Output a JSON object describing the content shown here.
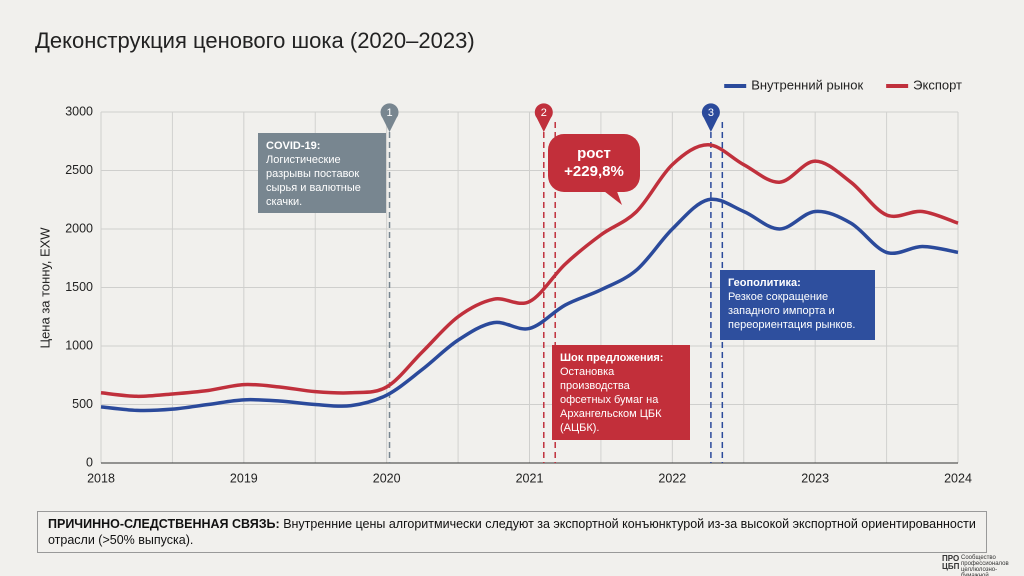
{
  "chart_data": {
    "type": "line",
    "title": "Деконструкция ценового шока (2020–2023)",
    "y_label": "Цена за тонну, EXW",
    "x": [
      2018,
      2018.25,
      2018.5,
      2018.75,
      2019,
      2019.25,
      2019.5,
      2019.75,
      2020,
      2020.25,
      2020.5,
      2020.75,
      2021,
      2021.25,
      2021.5,
      2021.75,
      2022,
      2022.25,
      2022.5,
      2022.75,
      2023,
      2023.25,
      2023.5,
      2023.75,
      2024
    ],
    "series": [
      {
        "name": "Внутренний рынок",
        "color": "#2b4a9b",
        "values": [
          480,
          450,
          460,
          500,
          540,
          530,
          500,
          490,
          580,
          800,
          1050,
          1200,
          1150,
          1350,
          1480,
          1650,
          2000,
          2250,
          2150,
          2000,
          2150,
          2050,
          1800,
          1850,
          1800
        ]
      },
      {
        "name": "Экспорт",
        "color": "#c0303c",
        "values": [
          600,
          570,
          590,
          620,
          670,
          650,
          610,
          600,
          650,
          950,
          1250,
          1400,
          1380,
          1700,
          1950,
          2150,
          2550,
          2720,
          2550,
          2400,
          2580,
          2400,
          2120,
          2150,
          2050
        ]
      }
    ],
    "xlim": [
      2018,
      2024
    ],
    "xticks": [
      2018,
      2019,
      2020,
      2021,
      2022,
      2023,
      2024
    ],
    "ylim": [
      0,
      3000
    ],
    "yticks": [
      0,
      500,
      1000,
      1500,
      2000,
      2500,
      3000
    ],
    "grid": true,
    "legend": "top-right",
    "events": [
      {
        "label": "1",
        "x": [
          2020.02
        ],
        "color": "#788690"
      },
      {
        "label": "2",
        "x": [
          2021.1,
          2021.18
        ],
        "color": "#c0303c"
      },
      {
        "label": "3",
        "x": [
          2022.27,
          2022.35
        ],
        "color": "#2b4a9b"
      }
    ],
    "annotations": {
      "covid": {
        "title": "COVID-19:",
        "text": "Логистические разрывы поставок сырья и валютные скачки."
      },
      "growth": {
        "title": "рост",
        "text": "+229,8%"
      },
      "shock": {
        "title": "Шок предложения:",
        "text": "Остановка производства офсетных бумаг на Архангельском ЦБК (АЦБК)."
      },
      "geo": {
        "title": "Геополитика:",
        "text": "Резкое сокращение западного импорта и переориентация рынков."
      }
    },
    "footer": {
      "bold": "ПРИЧИННО-СЛЕДСТВЕННАЯ СВЯЗЬ:",
      "text": "Внутренние цены алгоритмически следуют за экспортной конъюнктурой из-за высокой экспортной ориентированности отрасли (>50% выпуска)."
    },
    "logo": {
      "big": "ПРО ЦБП",
      "small": "Сообщество профессионалов целлюлозно-бумажной промышленности"
    }
  }
}
